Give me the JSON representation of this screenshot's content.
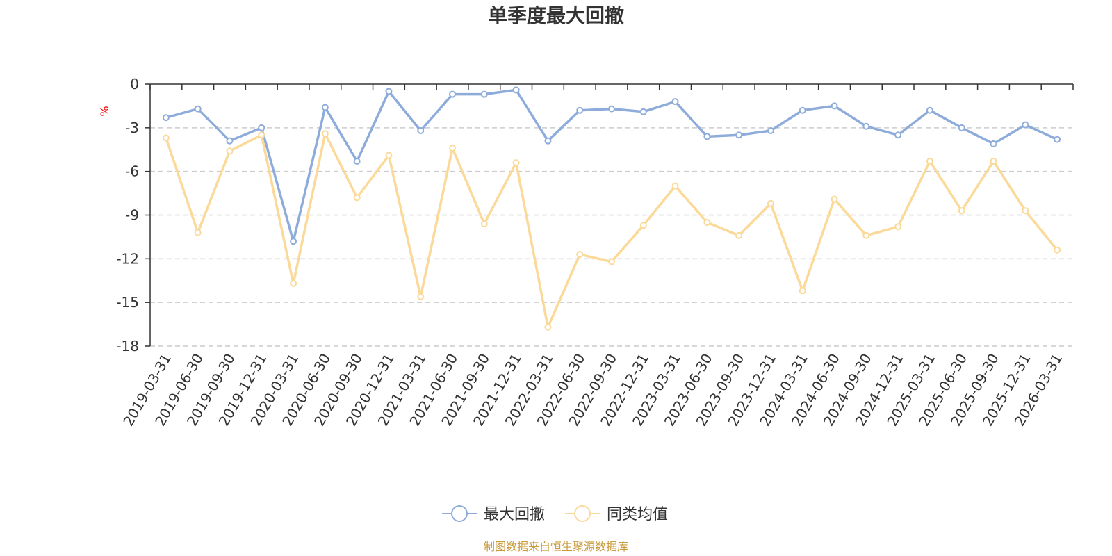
{
  "chart_data": {
    "type": "line",
    "title": "单季度最大回撤",
    "ylabel": "%",
    "ylim": [
      -18,
      0
    ],
    "yticks": [
      0,
      -3,
      -6,
      -9,
      -12,
      -15,
      -18
    ],
    "grid": true,
    "legend_position": "bottom-center",
    "categories": [
      "2019-03-31",
      "2019-06-30",
      "2019-09-30",
      "2019-12-31",
      "2020-03-31",
      "2020-06-30",
      "2020-09-30",
      "2020-12-31",
      "2021-03-31",
      "2021-06-30",
      "2021-09-30",
      "2021-12-31",
      "2022-03-31",
      "2022-06-30",
      "2022-09-30",
      "2022-12-31",
      "2023-03-31",
      "2023-06-30",
      "2023-09-30",
      "2023-12-31",
      "2024-03-31",
      "2024-06-30",
      "2024-09-30",
      "2024-12-31",
      "2025-03-31",
      "2025-06-30",
      "2025-09-30",
      "2025-12-31",
      "2026-03-31"
    ],
    "series": [
      {
        "name": "最大回撤",
        "color": "#8eacdb",
        "values": [
          -2.3,
          -1.7,
          -3.9,
          -3.0,
          -10.8,
          -1.6,
          -5.3,
          -0.5,
          -3.2,
          -0.7,
          -0.7,
          -0.4,
          -3.9,
          -1.8,
          -1.7,
          -1.9,
          -1.2,
          -3.6,
          -3.5,
          -3.2,
          -1.8,
          -1.5,
          -2.9,
          -3.5,
          -1.8,
          -3.0,
          -4.1,
          -2.8,
          -3.8
        ]
      },
      {
        "name": "同类均值",
        "color": "#fbd999",
        "values": [
          -3.7,
          -10.2,
          -4.6,
          -3.5,
          -13.7,
          -3.4,
          -7.8,
          -4.9,
          -14.6,
          -4.4,
          -9.6,
          -5.4,
          -16.7,
          -11.7,
          -12.2,
          -9.7,
          -7.0,
          -9.5,
          -10.4,
          -8.2,
          -14.2,
          -7.9,
          -10.4,
          -9.8,
          -5.3,
          -8.7,
          -5.3,
          -8.7,
          -11.4
        ]
      }
    ]
  },
  "source_text": "制图数据来自恒生聚源数据库",
  "colors": {
    "title": "#333333",
    "axis": "#333333",
    "grid": "#cccccc",
    "unit": "#ff0000",
    "source": "#c89b3c"
  }
}
